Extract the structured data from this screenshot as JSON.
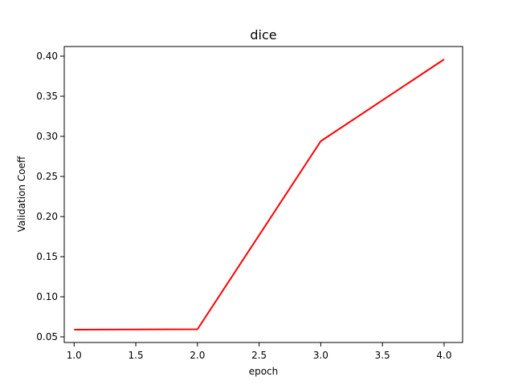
{
  "chart_data": {
    "type": "line",
    "title": "dice",
    "xlabel": "epoch",
    "ylabel": "Validation Coeff",
    "x": [
      1.0,
      2.0,
      3.0,
      4.0
    ],
    "series": [
      {
        "values": [
          0.059,
          0.0595,
          0.294,
          0.396
        ],
        "color": "#ff0000"
      }
    ],
    "xlim": [
      0.92,
      4.15
    ],
    "ylim": [
      0.043,
      0.412
    ],
    "xticks": [
      1.0,
      1.5,
      2.0,
      2.5,
      3.0,
      3.5,
      4.0
    ],
    "xtick_labels": [
      "1.0",
      "1.5",
      "2.0",
      "2.5",
      "3.0",
      "3.5",
      "4.0"
    ],
    "yticks": [
      0.05,
      0.1,
      0.15,
      0.2,
      0.25,
      0.3,
      0.35,
      0.4
    ],
    "ytick_labels": [
      "0.05",
      "0.10",
      "0.15",
      "0.20",
      "0.25",
      "0.30",
      "0.35",
      "0.40"
    ],
    "grid": false,
    "legend": "none"
  }
}
